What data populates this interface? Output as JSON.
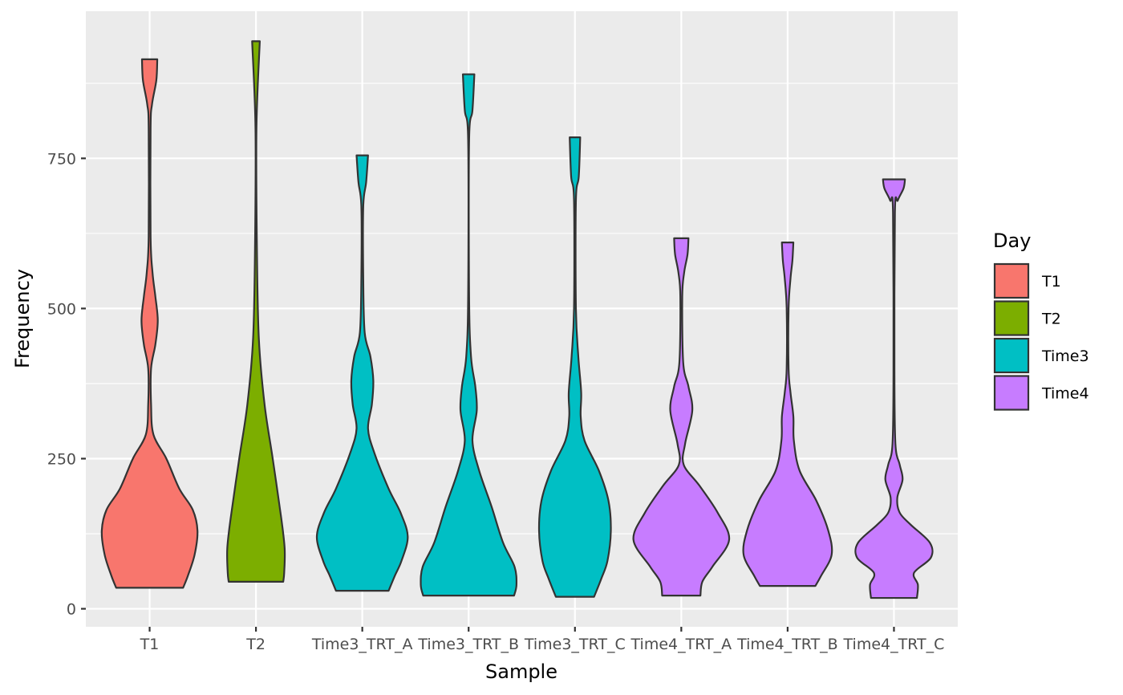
{
  "chart_data": {
    "type": "violin",
    "xlabel": "Sample",
    "ylabel": "Frequency",
    "categories": [
      "T1",
      "T2",
      "Time3_TRT_A",
      "Time3_TRT_B",
      "Time3_TRT_C",
      "Time4_TRT_A",
      "Time4_TRT_B",
      "Time4_TRT_C"
    ],
    "group_of_category": [
      "T1",
      "T2",
      "Time3",
      "Time3",
      "Time3",
      "Time4",
      "Time4",
      "Time4"
    ],
    "y_ticks": [
      0,
      250,
      500,
      750
    ],
    "ylim": [
      -30,
      995
    ],
    "grid": true,
    "legend": {
      "title": "Day",
      "position": "right",
      "items": [
        {
          "label": "T1",
          "color": "#F8766D"
        },
        {
          "label": "T2",
          "color": "#7CAE00"
        },
        {
          "label": "Time3",
          "color": "#00BFC4"
        },
        {
          "label": "Time4",
          "color": "#C77CFF"
        }
      ]
    },
    "series": [
      {
        "category": "T1",
        "min": 35,
        "max": 915,
        "density": [
          [
            35,
            0.7
          ],
          [
            55,
            0.8
          ],
          [
            90,
            0.94
          ],
          [
            130,
            1.0
          ],
          [
            165,
            0.9
          ],
          [
            200,
            0.62
          ],
          [
            250,
            0.35
          ],
          [
            290,
            0.08
          ],
          [
            340,
            0.03
          ],
          [
            400,
            0.03
          ],
          [
            440,
            0.12
          ],
          [
            480,
            0.17
          ],
          [
            520,
            0.12
          ],
          [
            560,
            0.06
          ],
          [
            620,
            0.02
          ],
          [
            800,
            0.02
          ],
          [
            840,
            0.05
          ],
          [
            880,
            0.14
          ],
          [
            915,
            0.16
          ]
        ]
      },
      {
        "category": "T2",
        "min": 45,
        "max": 945,
        "density": [
          [
            45,
            0.57
          ],
          [
            60,
            0.59
          ],
          [
            100,
            0.6
          ],
          [
            150,
            0.53
          ],
          [
            250,
            0.35
          ],
          [
            340,
            0.18
          ],
          [
            450,
            0.06
          ],
          [
            600,
            0.02
          ],
          [
            800,
            0.01
          ],
          [
            945,
            0.08
          ]
        ]
      },
      {
        "category": "Time3_TRT_A",
        "min": 30,
        "max": 755,
        "density": [
          [
            30,
            0.55
          ],
          [
            55,
            0.68
          ],
          [
            80,
            0.82
          ],
          [
            120,
            0.95
          ],
          [
            160,
            0.8
          ],
          [
            200,
            0.55
          ],
          [
            260,
            0.25
          ],
          [
            300,
            0.12
          ],
          [
            340,
            0.2
          ],
          [
            380,
            0.23
          ],
          [
            420,
            0.17
          ],
          [
            460,
            0.05
          ],
          [
            550,
            0.02
          ],
          [
            670,
            0.02
          ],
          [
            710,
            0.08
          ],
          [
            755,
            0.12
          ]
        ]
      },
      {
        "category": "Time3_TRT_B",
        "min": 22,
        "max": 890,
        "density": [
          [
            22,
            0.95
          ],
          [
            40,
            1.0
          ],
          [
            70,
            0.96
          ],
          [
            110,
            0.72
          ],
          [
            170,
            0.48
          ],
          [
            230,
            0.22
          ],
          [
            280,
            0.08
          ],
          [
            330,
            0.17
          ],
          [
            370,
            0.14
          ],
          [
            420,
            0.05
          ],
          [
            520,
            0.01
          ],
          [
            780,
            0.01
          ],
          [
            830,
            0.08
          ],
          [
            890,
            0.12
          ]
        ]
      },
      {
        "category": "Time3_TRT_C",
        "min": 20,
        "max": 785,
        "density": [
          [
            20,
            0.4
          ],
          [
            50,
            0.55
          ],
          [
            80,
            0.68
          ],
          [
            130,
            0.75
          ],
          [
            180,
            0.7
          ],
          [
            230,
            0.5
          ],
          [
            280,
            0.2
          ],
          [
            320,
            0.12
          ],
          [
            360,
            0.13
          ],
          [
            420,
            0.07
          ],
          [
            500,
            0.02
          ],
          [
            680,
            0.02
          ],
          [
            720,
            0.08
          ],
          [
            785,
            0.11
          ]
        ]
      },
      {
        "category": "Time4_TRT_A",
        "min": 22,
        "max": 617,
        "density": [
          [
            22,
            0.4
          ],
          [
            45,
            0.44
          ],
          [
            70,
            0.65
          ],
          [
            115,
            1.0
          ],
          [
            160,
            0.76
          ],
          [
            205,
            0.38
          ],
          [
            240,
            0.05
          ],
          [
            275,
            0.08
          ],
          [
            330,
            0.23
          ],
          [
            370,
            0.15
          ],
          [
            410,
            0.04
          ],
          [
            520,
            0.02
          ],
          [
            560,
            0.06
          ],
          [
            590,
            0.13
          ],
          [
            617,
            0.15
          ]
        ]
      },
      {
        "category": "Time4_TRT_B",
        "min": 38,
        "max": 610,
        "density": [
          [
            38,
            0.58
          ],
          [
            55,
            0.7
          ],
          [
            90,
            0.92
          ],
          [
            130,
            0.85
          ],
          [
            180,
            0.6
          ],
          [
            230,
            0.25
          ],
          [
            280,
            0.13
          ],
          [
            320,
            0.12
          ],
          [
            360,
            0.06
          ],
          [
            400,
            0.02
          ],
          [
            500,
            0.02
          ],
          [
            550,
            0.06
          ],
          [
            580,
            0.1
          ],
          [
            610,
            0.12
          ]
        ]
      },
      {
        "category": "Time4_TRT_C",
        "min": 18,
        "max": 715,
        "density": [
          [
            18,
            0.48
          ],
          [
            40,
            0.5
          ],
          [
            60,
            0.42
          ],
          [
            85,
            0.77
          ],
          [
            110,
            0.75
          ],
          [
            140,
            0.35
          ],
          [
            160,
            0.12
          ],
          [
            185,
            0.07
          ],
          [
            215,
            0.18
          ],
          [
            240,
            0.12
          ],
          [
            275,
            0.03
          ],
          [
            400,
            0.01
          ],
          [
            660,
            0.02
          ],
          [
            680,
            0.08
          ],
          [
            700,
            0.2
          ],
          [
            715,
            0.23
          ]
        ]
      }
    ]
  }
}
